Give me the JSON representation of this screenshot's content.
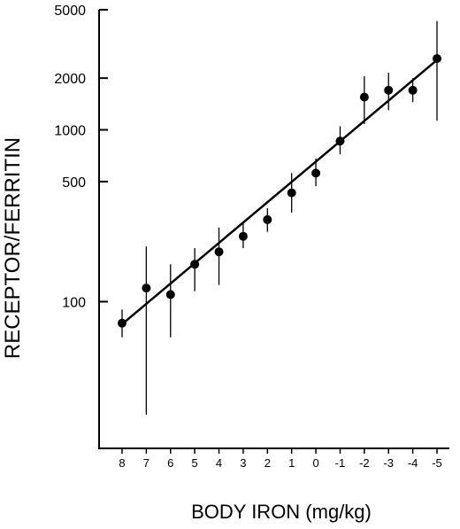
{
  "chart_data": {
    "type": "scatter",
    "title": "",
    "xlabel": "BODY IRON (mg/kg)",
    "ylabel": "RECEPTOR/FERRITIN",
    "y_scale": "log",
    "x_direction": "decreasing",
    "xlim": [
      8.9,
      -5.7
    ],
    "ylim": [
      14,
      5000
    ],
    "x_ticks": [
      8,
      7,
      6,
      5,
      4,
      3,
      2,
      1,
      0,
      -1,
      -2,
      -3,
      -4,
      -5
    ],
    "x_tick_labels": [
      "8",
      "7",
      "6",
      "5",
      "4",
      "3",
      "2",
      "1",
      "0",
      "-1",
      "-2",
      "-3",
      "-4",
      "-5"
    ],
    "y_ticks": [
      100,
      500,
      1000,
      2000,
      5000
    ],
    "y_tick_labels": [
      "100",
      "500",
      "1000",
      "2000",
      "5000"
    ],
    "grid": false,
    "series": [
      {
        "x": [
          8,
          7,
          6,
          5,
          4,
          3,
          2,
          1,
          0,
          -1,
          -2,
          -3,
          -4,
          -5
        ],
        "y": [
          75,
          120,
          110,
          165,
          195,
          240,
          300,
          430,
          560,
          860,
          1550,
          1700,
          1700,
          2600
        ],
        "y_low": [
          62,
          22,
          62,
          115,
          125,
          205,
          255,
          330,
          470,
          720,
          1080,
          1300,
          1450,
          1130
        ],
        "y_high": [
          90,
          210,
          165,
          205,
          270,
          285,
          350,
          560,
          680,
          1050,
          2050,
          2150,
          2000,
          4300
        ]
      }
    ],
    "fit_line": {
      "x": [
        8,
        -5
      ],
      "y": [
        74,
        2550
      ]
    }
  }
}
